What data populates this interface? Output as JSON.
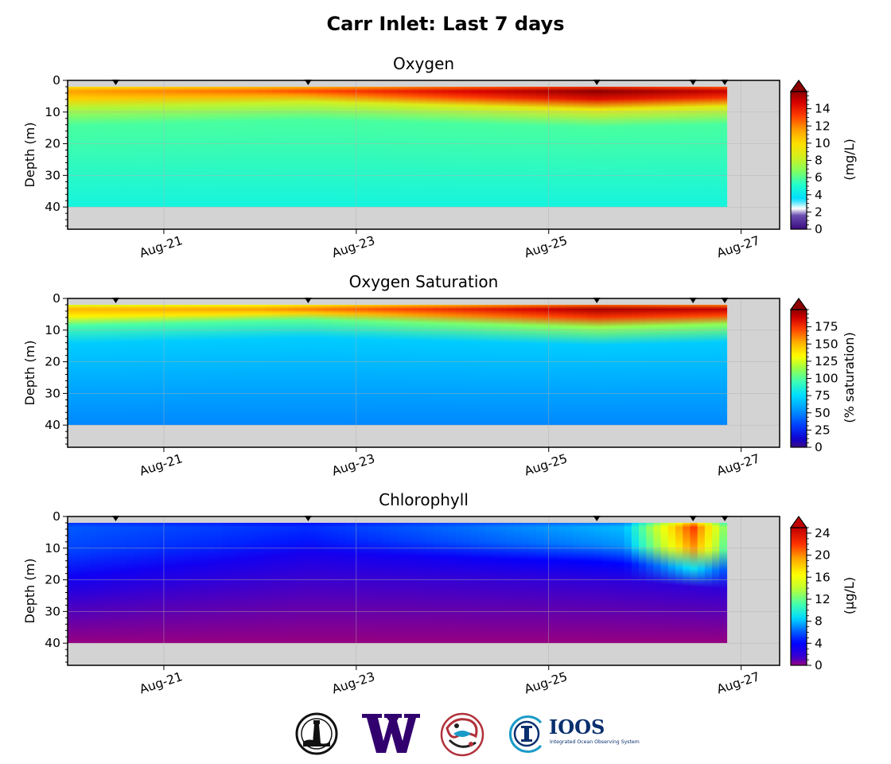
{
  "figure": {
    "title": "Carr Inlet: Last 7 days"
  },
  "chart_data": [
    {
      "type": "heatmap",
      "title": "Oxygen",
      "ylabel": "Depth (m)",
      "y_ticks": [
        0,
        10,
        20,
        30,
        40
      ],
      "ylim": [
        47,
        0
      ],
      "x_ticks": [
        "Aug-21",
        "Aug-23",
        "Aug-25",
        "Aug-27"
      ],
      "x_range_days": [
        20.0,
        27.4
      ],
      "data_end_day": 26.85,
      "profile_marks_day": [
        20.5,
        22.5,
        25.5,
        26.5,
        26.83
      ],
      "max_depth": 40,
      "colorbar": {
        "label": "(mg/L)",
        "ticks": [
          0,
          2,
          4,
          6,
          8,
          10,
          12,
          14
        ],
        "range": [
          0,
          16
        ],
        "scale": "oxygen"
      },
      "surface_layer": {
        "base_depth_by_day": [
          [
            20.0,
            7
          ],
          [
            22.5,
            5
          ],
          [
            25.5,
            7.5
          ],
          [
            26.85,
            6.5
          ]
        ],
        "surface_value_by_day": [
          [
            20.0,
            11.5
          ],
          [
            22.0,
            12.5
          ],
          [
            25.5,
            16
          ],
          [
            26.85,
            15
          ]
        ]
      },
      "deep_value": 4.6,
      "mid_value": 5.8
    },
    {
      "type": "heatmap",
      "title": "Oxygen Saturation",
      "ylabel": "Depth (m)",
      "y_ticks": [
        0,
        10,
        20,
        30,
        40
      ],
      "ylim": [
        47,
        0
      ],
      "x_ticks": [
        "Aug-21",
        "Aug-23",
        "Aug-25",
        "Aug-27"
      ],
      "x_range_days": [
        20.0,
        27.4
      ],
      "data_end_day": 26.85,
      "profile_marks_day": [
        20.5,
        22.5,
        25.5,
        26.5,
        26.83
      ],
      "max_depth": 40,
      "colorbar": {
        "label": "(% saturation)",
        "ticks": [
          0,
          25,
          50,
          75,
          100,
          125,
          150,
          175
        ],
        "range": [
          0,
          200
        ],
        "scale": "saturation"
      },
      "surface_layer": {
        "base_depth_by_day": [
          [
            20.0,
            7
          ],
          [
            22.5,
            5
          ],
          [
            25.5,
            7.5
          ],
          [
            26.85,
            6.5
          ]
        ],
        "surface_value_by_day": [
          [
            20.0,
            150
          ],
          [
            22.0,
            155
          ],
          [
            25.5,
            195
          ],
          [
            26.85,
            190
          ]
        ]
      },
      "deep_value": 50,
      "mid_value": 70
    },
    {
      "type": "heatmap",
      "title": "Chlorophyll",
      "ylabel": "Depth (m)",
      "y_ticks": [
        0,
        10,
        20,
        30,
        40
      ],
      "ylim": [
        47,
        0
      ],
      "x_ticks": [
        "Aug-21",
        "Aug-23",
        "Aug-25",
        "Aug-27"
      ],
      "x_range_days": [
        20.0,
        27.4
      ],
      "data_end_day": 26.85,
      "profile_marks_day": [
        20.5,
        22.5,
        25.5,
        26.5,
        26.83
      ],
      "max_depth": 40,
      "colorbar": {
        "label": "(μg/L)",
        "ticks": [
          0,
          4,
          8,
          12,
          16,
          20,
          24
        ],
        "range": [
          0,
          25
        ],
        "scale": "chlorophyll"
      },
      "surface_layer": {
        "base_depth_by_day": [
          [
            20.0,
            18
          ],
          [
            22.5,
            10
          ],
          [
            25.5,
            13
          ],
          [
            26.85,
            16
          ]
        ],
        "surface_value_by_day": [
          [
            20.0,
            6
          ],
          [
            22.5,
            5
          ],
          [
            25.8,
            8
          ],
          [
            26.5,
            22
          ],
          [
            26.85,
            12
          ]
        ]
      },
      "deep_value": 0,
      "mid_value": 2
    }
  ],
  "logos": [
    {
      "name": "nanoos-buoy-seal-logo"
    },
    {
      "name": "uw-w-logo"
    },
    {
      "name": "nw-tribal-art-logo"
    },
    {
      "name": "ioos-logo",
      "text": "IOOS",
      "subtitle": "Integrated Ocean Observing System"
    }
  ],
  "colors": {
    "land": "#d3d3d3",
    "uw_purple": "#32006e",
    "ioos_navy": "#0a2f6e",
    "ioos_teal": "#1a9bc7",
    "tribal_red": "#b0313a"
  }
}
